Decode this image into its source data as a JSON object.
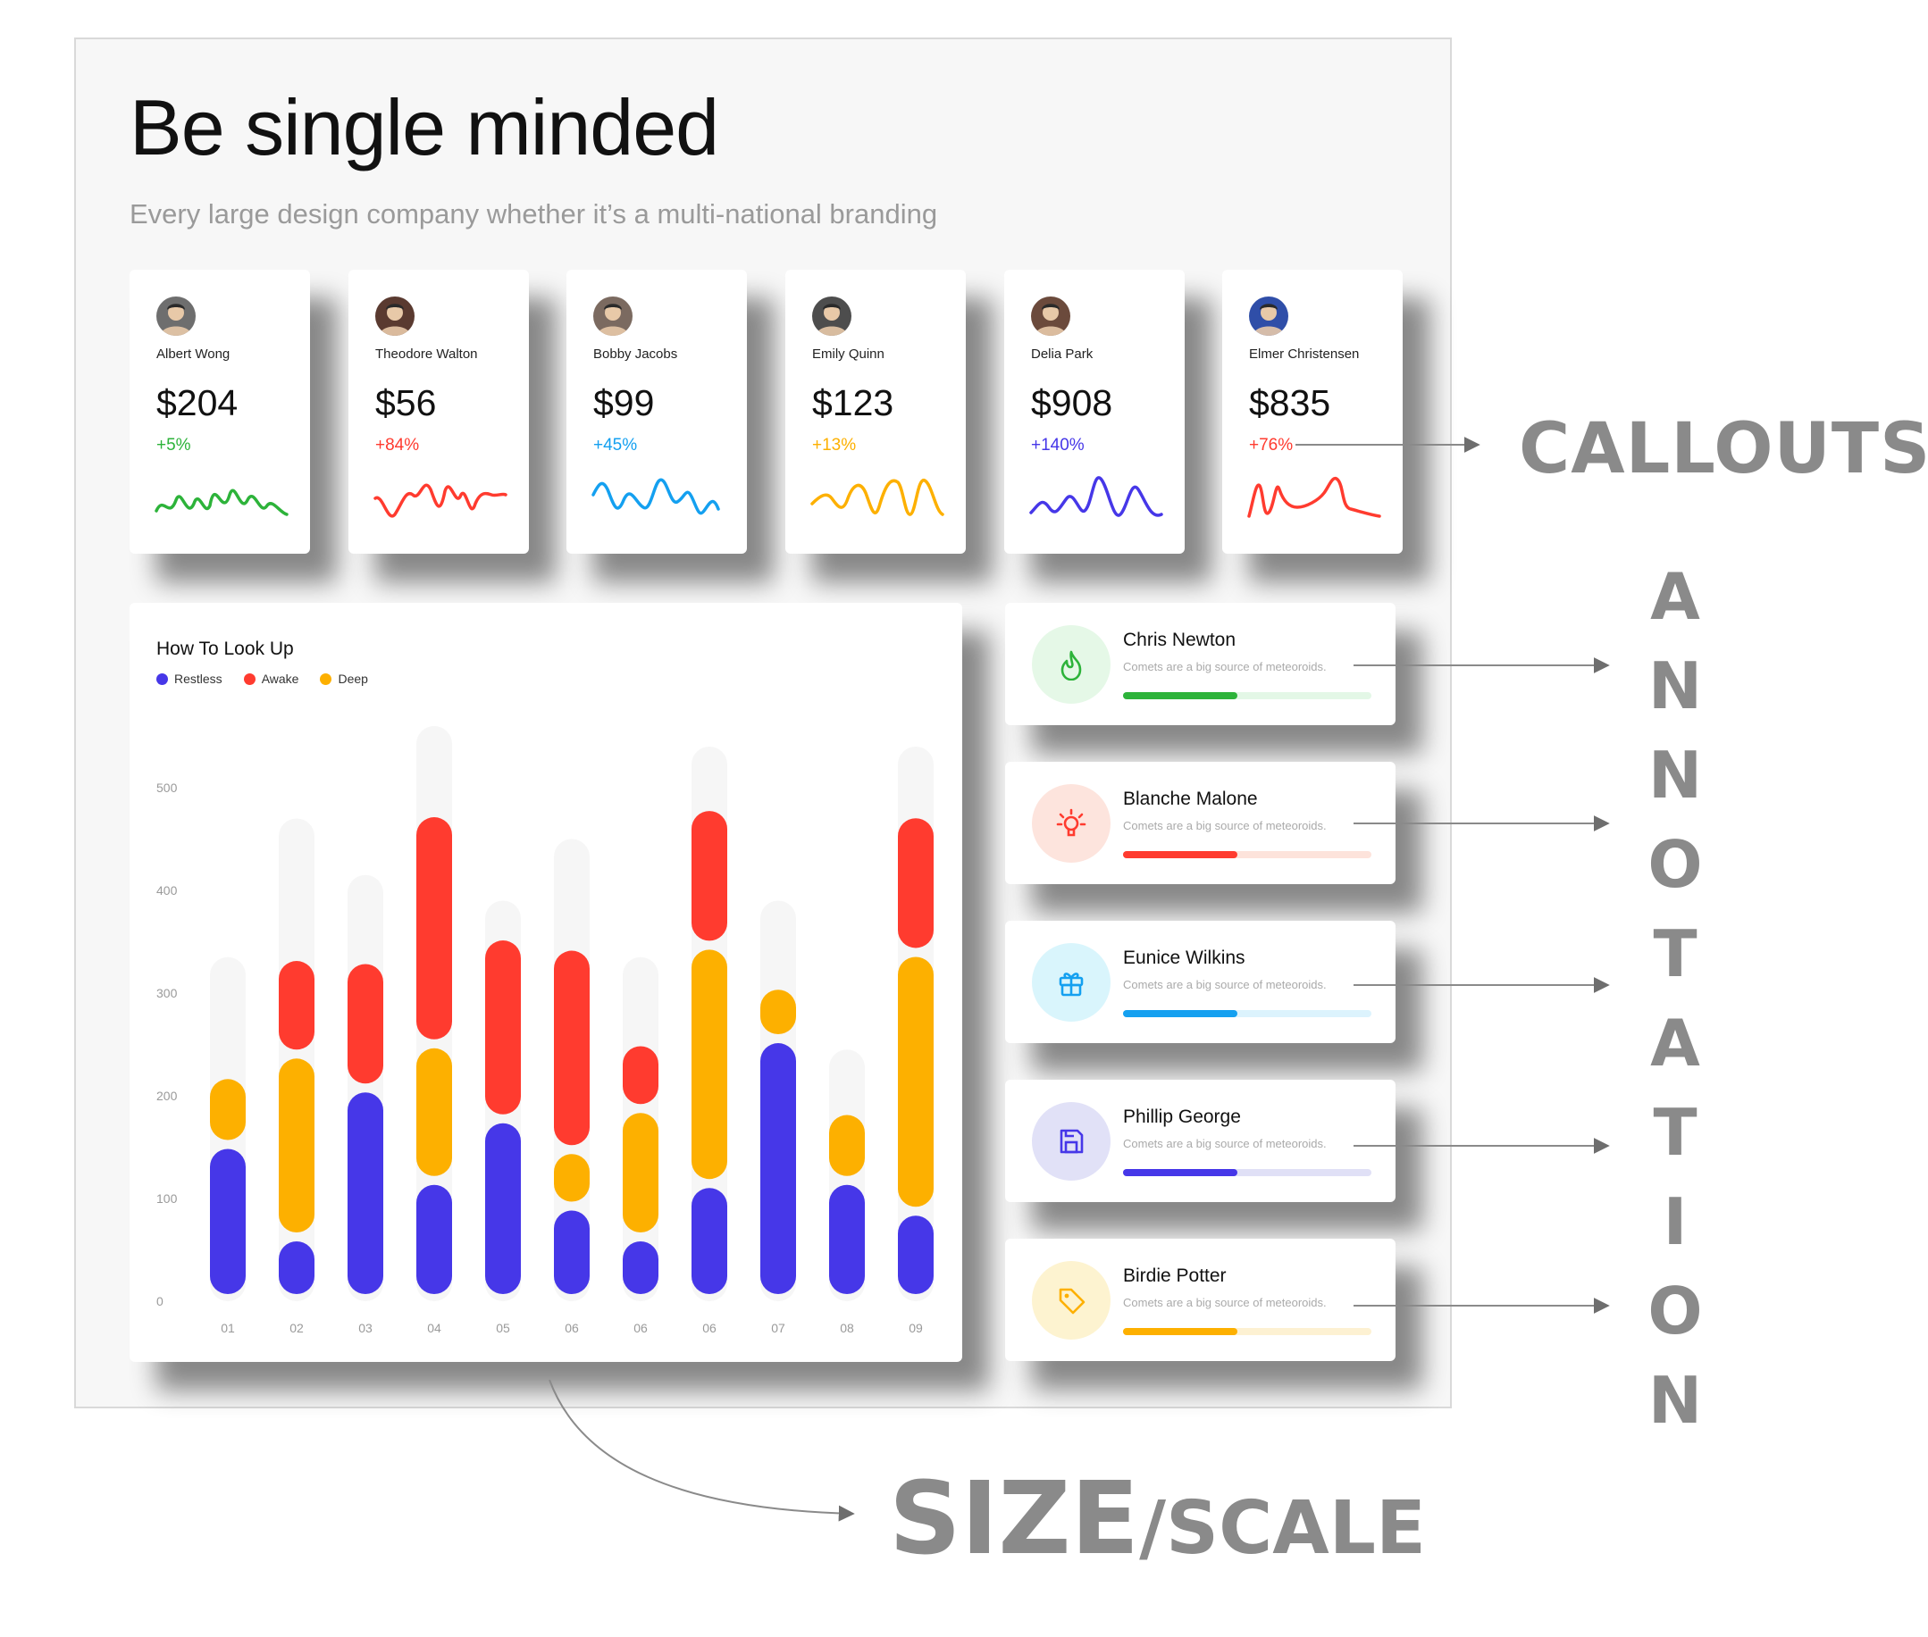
{
  "header": {
    "title": "Be single minded",
    "subtitle": "Every large design company whether it’s a multi-national branding"
  },
  "cards": [
    {
      "name": "Albert Wong",
      "amount": "$204",
      "change": "+5%",
      "color": "#2db33a",
      "avatar_bg": "#6e6e6e"
    },
    {
      "name": "Theodore Walton",
      "amount": "$56",
      "change": "+84%",
      "color": "#ff3b2f",
      "avatar_bg": "#5a3a30"
    },
    {
      "name": "Bobby Jacobs",
      "amount": "$99",
      "change": "+45%",
      "color": "#14a0f0",
      "avatar_bg": "#7b6a60"
    },
    {
      "name": "Emily Quinn",
      "amount": "$123",
      "change": "+13%",
      "color": "#fdb000",
      "avatar_bg": "#4d4d4d"
    },
    {
      "name": "Delia Park",
      "amount": "$908",
      "change": "+140%",
      "color": "#4637e8",
      "avatar_bg": "#6b4a3c"
    },
    {
      "name": "Elmer Christensen",
      "amount": "$835",
      "change": "+76%",
      "color": "#ff3b2f",
      "avatar_bg": "#2f4ea8"
    }
  ],
  "chart": {
    "title": "How To Look Up",
    "legend": [
      {
        "label": "Restless",
        "color": "#4637e8"
      },
      {
        "label": "Awake",
        "color": "#ff3b2f"
      },
      {
        "label": "Deep",
        "color": "#fdb000"
      }
    ]
  },
  "chart_data": {
    "type": "bar",
    "title": "How To Look Up",
    "xlabel": "",
    "ylabel": "",
    "yticks": [
      "500",
      "400",
      "300",
      "200",
      "100",
      "0"
    ],
    "ylim": [
      0,
      500
    ],
    "grid": false,
    "legend_position": "top-left",
    "categories": [
      "01",
      "02",
      "03",
      "04",
      "05",
      "06",
      "06",
      "06",
      "07",
      "08",
      "09"
    ],
    "background_totals": [
      335,
      470,
      415,
      560,
      390,
      450,
      335,
      540,
      390,
      245,
      540
    ],
    "series": [
      {
        "name": "Restless",
        "values": [
          150,
          60,
          205,
          115,
          175,
          90,
          60,
          112,
          253,
          115,
          85
        ]
      },
      {
        "name": "Deep",
        "values": [
          68,
          178,
          0,
          133,
          0,
          55,
          125,
          232,
          52,
          68,
          252
        ]
      },
      {
        "name": "Awake",
        "values": [
          0,
          95,
          125,
          225,
          178,
          198,
          65,
          135,
          0,
          0,
          135
        ]
      }
    ]
  },
  "people": [
    {
      "name": "Chris Newton",
      "desc": "Comets are a big source of meteoroids.",
      "progress": 0.46,
      "color": "#2db33a",
      "track": "#e3f7e6",
      "icon_bg": "#e5f8e7",
      "icon": "flame-icon"
    },
    {
      "name": "Blanche Malone",
      "desc": "Comets are a big source of meteoroids.",
      "progress": 0.46,
      "color": "#ff3b2f",
      "track": "#fde3db",
      "icon_bg": "#fde4dd",
      "icon": "lightbulb-icon"
    },
    {
      "name": "Eunice Wilkins",
      "desc": "Comets are a big source of meteoroids.",
      "progress": 0.46,
      "color": "#14a0f0",
      "track": "#dcf3fd",
      "icon_bg": "#d9f5fc",
      "icon": "gift-icon"
    },
    {
      "name": "Phillip George",
      "desc": "Comets are a big source of meteoroids.",
      "progress": 0.46,
      "color": "#4637e8",
      "track": "#e0e0f6",
      "icon_bg": "#e1e1f7",
      "icon": "save-icon"
    },
    {
      "name": "Birdie Potter",
      "desc": "Comets are a big source of meteoroids.",
      "progress": 0.46,
      "color": "#fdb000",
      "track": "#fdf1d2",
      "icon_bg": "#fdf3d0",
      "icon": "tag-icon"
    }
  ],
  "annotations": {
    "callouts": "CALLOUTS",
    "annotation": "ANNOTATION",
    "size": "SIZE",
    "scale": "/SCALE"
  }
}
